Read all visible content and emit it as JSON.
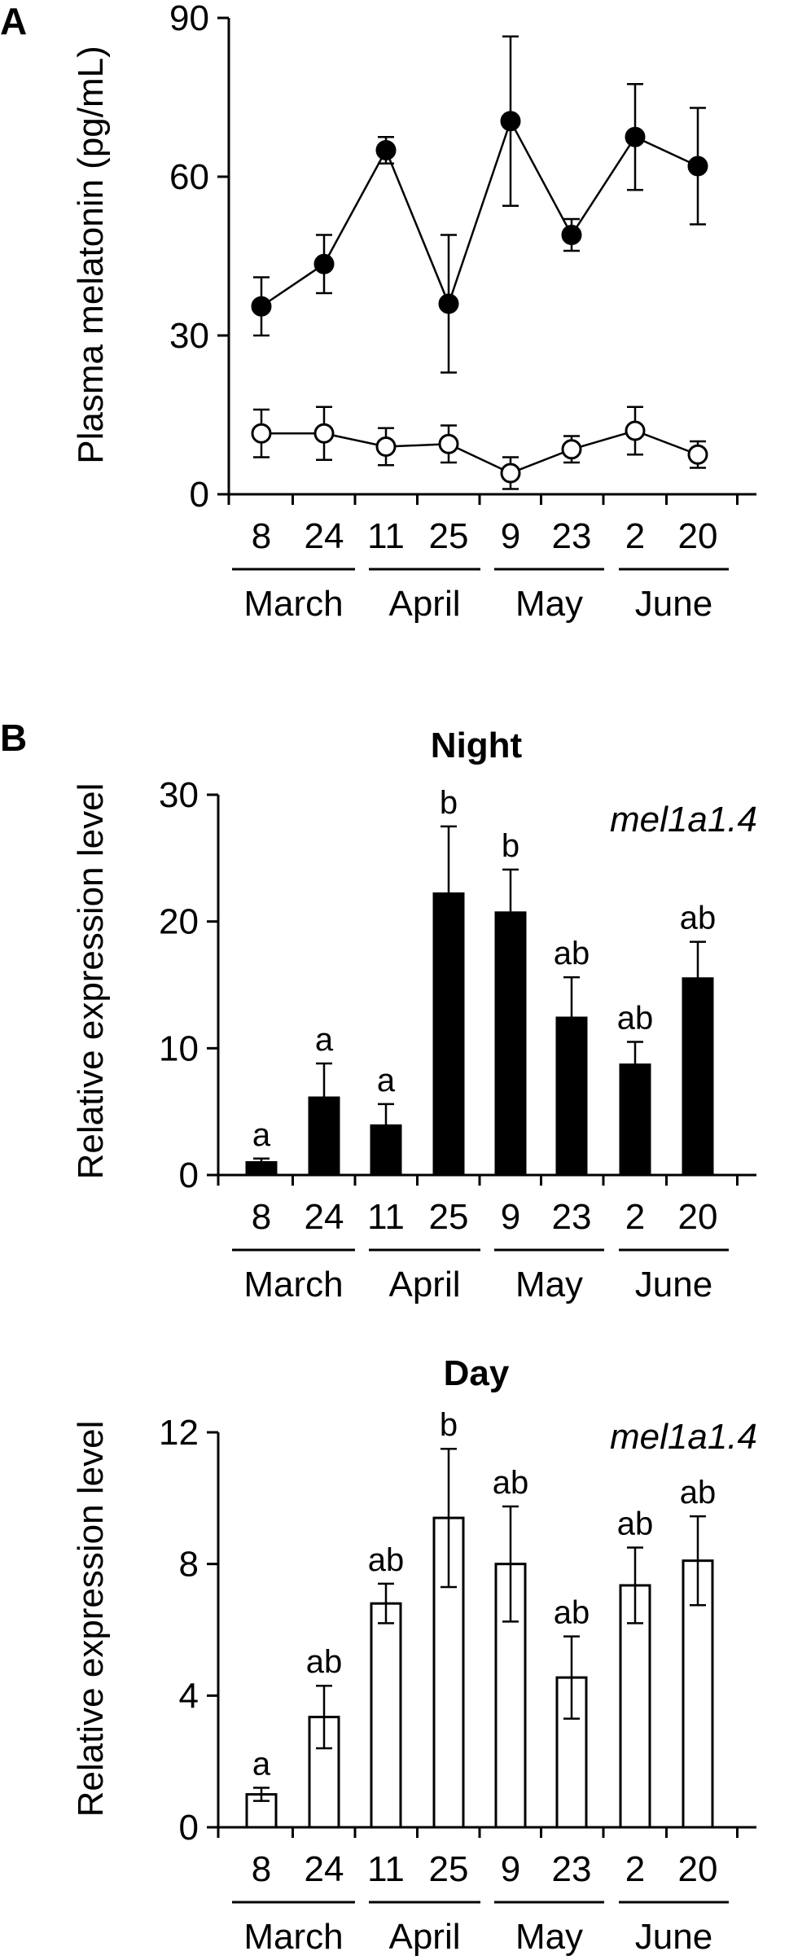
{
  "chart_data": [
    {
      "panel": "A",
      "type": "line",
      "title": "",
      "ylabel": "Plasma melatonin (pg/mL)",
      "ylim": [
        0,
        90
      ],
      "yticks": [
        "0",
        "30",
        "60",
        "90"
      ],
      "categories": [
        "8",
        "24",
        "11",
        "25",
        "9",
        "23",
        "2",
        "20"
      ],
      "months": [
        "March",
        "April",
        "May",
        "June"
      ],
      "series": [
        {
          "marker": "filled",
          "values": [
            35.5,
            43.5,
            65,
            36,
            70.5,
            49,
            67.5,
            62
          ],
          "errors": [
            5.5,
            5.5,
            2.5,
            13,
            16,
            3,
            10,
            11
          ]
        },
        {
          "marker": "open",
          "values": [
            11.5,
            11.5,
            9,
            9.5,
            4,
            8.5,
            12,
            7.5
          ],
          "errors": [
            4.5,
            5,
            3.5,
            3.5,
            3,
            2.5,
            4.5,
            2.5
          ]
        }
      ]
    },
    {
      "panel": "B",
      "type": "bar",
      "title": "Night",
      "gene": "mel1a1.4",
      "ylabel": "Relative expression level",
      "ylim": [
        0,
        30
      ],
      "yticks": [
        "0",
        "10",
        "20",
        "30"
      ],
      "categories": [
        "8",
        "24",
        "11",
        "25",
        "9",
        "23",
        "2",
        "20"
      ],
      "months": [
        "March",
        "April",
        "May",
        "June"
      ],
      "fill": "#000000",
      "values": [
        1,
        6.1,
        3.9,
        22.2,
        20.7,
        12.4,
        8.7,
        15.5
      ],
      "errors": [
        0.3,
        2.7,
        1.7,
        5.3,
        3.4,
        3.2,
        1.8,
        2.9
      ],
      "sig_labels": [
        "a",
        "a",
        "a",
        "b",
        "b",
        "ab",
        "ab",
        "ab"
      ]
    },
    {
      "panel": "",
      "type": "bar",
      "title": "Day",
      "gene": "mel1a1.4",
      "ylabel": "Relative expression level",
      "ylim": [
        0,
        12
      ],
      "yticks": [
        "0",
        "4",
        "8",
        "12"
      ],
      "categories": [
        "8",
        "24",
        "11",
        "25",
        "9",
        "23",
        "2",
        "20"
      ],
      "months": [
        "March",
        "April",
        "May",
        "June"
      ],
      "fill": "#ffffff",
      "values": [
        1,
        3.35,
        6.8,
        9.4,
        8,
        4.55,
        7.35,
        8.1
      ],
      "errors": [
        0.2,
        0.95,
        0.6,
        2.1,
        1.75,
        1.25,
        1.15,
        1.35
      ],
      "sig_labels": [
        "a",
        "ab",
        "ab",
        "b",
        "ab",
        "ab",
        "ab",
        "ab"
      ]
    }
  ]
}
